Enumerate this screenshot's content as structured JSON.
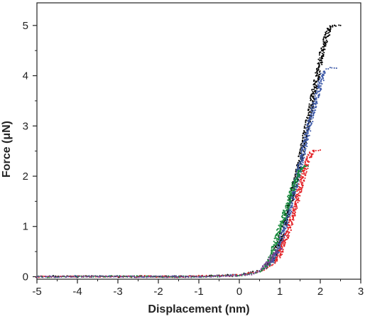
{
  "chart_data": {
    "type": "scatter",
    "title": "",
    "xlabel": "Displacement (nm)",
    "ylabel": "Force (μN)",
    "xlim": [
      -5,
      3
    ],
    "ylim": [
      -0.05,
      5.45
    ],
    "x_ticks": [
      -5,
      -4,
      -3,
      -2,
      -1,
      0,
      1,
      2,
      3
    ],
    "y_ticks": [
      0,
      1,
      2,
      3,
      4,
      5
    ],
    "x_tick_labels": [
      "-5",
      "-4",
      "-3",
      "-2",
      "-1",
      "0",
      "1",
      "2",
      "3"
    ],
    "y_tick_labels": [
      "0",
      "1",
      "2",
      "3",
      "4",
      "5"
    ],
    "grid": false,
    "legend": "none",
    "series": [
      {
        "color": "#000000",
        "points": [
          [
            -5.0,
            0.0
          ],
          [
            -4.5,
            0.01
          ],
          [
            -4.0,
            0.0
          ],
          [
            -3.5,
            0.01
          ],
          [
            -3.0,
            0.0
          ],
          [
            -2.5,
            0.0
          ],
          [
            -2.0,
            0.01
          ],
          [
            -1.5,
            0.0
          ],
          [
            -1.0,
            0.01
          ],
          [
            -0.5,
            0.02
          ],
          [
            0.0,
            0.04
          ],
          [
            0.3,
            0.08
          ],
          [
            0.5,
            0.12
          ],
          [
            0.6,
            0.16
          ],
          [
            0.7,
            0.22
          ],
          [
            0.8,
            0.32
          ],
          [
            0.9,
            0.5
          ],
          [
            1.0,
            0.75
          ],
          [
            1.1,
            1.0
          ],
          [
            1.2,
            1.3
          ],
          [
            1.3,
            1.6
          ],
          [
            1.4,
            1.95
          ],
          [
            1.5,
            2.3
          ],
          [
            1.6,
            2.7
          ],
          [
            1.7,
            3.1
          ],
          [
            1.8,
            3.5
          ],
          [
            1.9,
            3.9
          ],
          [
            2.0,
            4.3
          ],
          [
            2.1,
            4.65
          ],
          [
            2.2,
            4.9
          ],
          [
            2.3,
            5.0
          ],
          [
            2.4,
            5.0
          ],
          [
            2.5,
            5.0
          ]
        ]
      },
      {
        "color": "#3f5ba9",
        "points": [
          [
            -5.0,
            0.01
          ],
          [
            -4.5,
            0.0
          ],
          [
            -4.0,
            0.01
          ],
          [
            -3.5,
            0.0
          ],
          [
            -3.0,
            0.01
          ],
          [
            -2.5,
            0.0
          ],
          [
            -2.0,
            0.0
          ],
          [
            -1.5,
            0.01
          ],
          [
            -1.0,
            0.0
          ],
          [
            -0.5,
            0.02
          ],
          [
            0.0,
            0.03
          ],
          [
            0.3,
            0.07
          ],
          [
            0.5,
            0.11
          ],
          [
            0.6,
            0.15
          ],
          [
            0.7,
            0.2
          ],
          [
            0.8,
            0.28
          ],
          [
            0.9,
            0.42
          ],
          [
            1.0,
            0.65
          ],
          [
            1.1,
            0.9
          ],
          [
            1.2,
            1.2
          ],
          [
            1.3,
            1.5
          ],
          [
            1.4,
            1.85
          ],
          [
            1.5,
            2.2
          ],
          [
            1.6,
            2.55
          ],
          [
            1.7,
            2.9
          ],
          [
            1.8,
            3.25
          ],
          [
            1.9,
            3.55
          ],
          [
            2.0,
            3.85
          ],
          [
            2.1,
            4.1
          ],
          [
            2.2,
            4.15
          ],
          [
            2.3,
            4.15
          ],
          [
            2.4,
            4.15
          ]
        ]
      },
      {
        "color": "#e32227",
        "points": [
          [
            -5.0,
            0.0
          ],
          [
            -4.5,
            0.0
          ],
          [
            -4.0,
            0.01
          ],
          [
            -3.5,
            0.0
          ],
          [
            -3.0,
            0.0
          ],
          [
            -2.5,
            0.01
          ],
          [
            -2.0,
            0.0
          ],
          [
            -1.5,
            0.0
          ],
          [
            -1.0,
            0.01
          ],
          [
            -0.5,
            0.01
          ],
          [
            0.0,
            0.03
          ],
          [
            0.3,
            0.07
          ],
          [
            0.5,
            0.1
          ],
          [
            0.6,
            0.13
          ],
          [
            0.7,
            0.17
          ],
          [
            0.8,
            0.22
          ],
          [
            0.9,
            0.3
          ],
          [
            1.0,
            0.45
          ],
          [
            1.1,
            0.65
          ],
          [
            1.2,
            0.88
          ],
          [
            1.3,
            1.15
          ],
          [
            1.4,
            1.45
          ],
          [
            1.5,
            1.75
          ],
          [
            1.6,
            2.05
          ],
          [
            1.7,
            2.35
          ],
          [
            1.8,
            2.5
          ],
          [
            1.9,
            2.52
          ],
          [
            2.0,
            2.52
          ]
        ]
      },
      {
        "color": "#178a3c",
        "points": [
          [
            -5.0,
            0.0
          ],
          [
            -4.0,
            0.0
          ],
          [
            -3.0,
            0.01
          ],
          [
            -2.0,
            0.0
          ],
          [
            -1.0,
            0.0
          ],
          [
            -0.5,
            0.01
          ],
          [
            0.0,
            0.02
          ],
          [
            0.3,
            0.06
          ],
          [
            0.5,
            0.1
          ],
          [
            0.6,
            0.14
          ],
          [
            0.7,
            0.25
          ],
          [
            0.8,
            0.45
          ],
          [
            0.9,
            0.7
          ],
          [
            1.0,
            0.95
          ],
          [
            1.1,
            1.2
          ],
          [
            1.2,
            1.45
          ],
          [
            1.3,
            1.7
          ],
          [
            1.4,
            1.95
          ],
          [
            1.5,
            2.1
          ],
          [
            1.6,
            2.2
          ],
          [
            1.7,
            2.2
          ]
        ]
      },
      {
        "color": "#7b3f98",
        "points": [
          [
            -5.0,
            0.0
          ],
          [
            -4.0,
            0.0
          ],
          [
            -3.0,
            0.0
          ],
          [
            -2.0,
            0.0
          ],
          [
            -1.0,
            0.0
          ],
          [
            -0.5,
            0.01
          ],
          [
            0.0,
            0.02
          ],
          [
            0.3,
            0.05
          ],
          [
            0.4,
            0.08
          ],
          [
            0.5,
            0.12
          ],
          [
            0.6,
            0.18
          ],
          [
            0.7,
            0.27
          ],
          [
            0.8,
            0.38
          ],
          [
            0.9,
            0.5
          ],
          [
            1.0,
            0.55
          ],
          [
            1.05,
            0.55
          ]
        ]
      }
    ]
  }
}
